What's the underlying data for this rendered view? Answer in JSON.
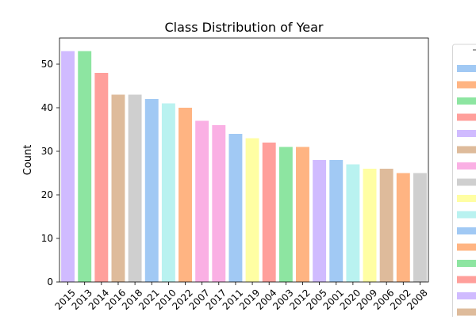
{
  "chart_data": {
    "type": "bar",
    "title": "Class Distribution of Year",
    "xlabel": "",
    "ylabel": "Count",
    "ylim": [
      0,
      56
    ],
    "yticks": [
      0,
      10,
      20,
      30,
      40,
      50
    ],
    "grid": false,
    "legend_position": "right",
    "categories": [
      "2015",
      "2013",
      "2014",
      "2016",
      "2018",
      "2021",
      "2010",
      "2022",
      "2007",
      "2017",
      "2011",
      "2019",
      "2004",
      "2003",
      "2012",
      "2005",
      "2001",
      "2020",
      "2009",
      "2006",
      "2002",
      "2008"
    ],
    "values": [
      53,
      53,
      48,
      43,
      43,
      42,
      41,
      40,
      37,
      36,
      34,
      33,
      32,
      31,
      31,
      28,
      28,
      27,
      26,
      26,
      25,
      25
    ],
    "colors": [
      "#d0bbff",
      "#8de5a1",
      "#ff9f9b",
      "#debb9b",
      "#cfcfcf",
      "#a1c9f4",
      "#b9f2f0",
      "#ffb482",
      "#fab0e4",
      "#fab0e4",
      "#a1c9f4",
      "#fffea3",
      "#ff9f9b",
      "#8de5a1",
      "#ffb482",
      "#d0bbff",
      "#a1c9f4",
      "#b9f2f0",
      "#fffea3",
      "#debb9b",
      "#ffb482",
      "#cfcfcf"
    ],
    "legend_colors": [
      "#a1c9f4",
      "#ffb482",
      "#8de5a1",
      "#ff9f9b",
      "#d0bbff",
      "#debb9b",
      "#fab0e4",
      "#cfcfcf",
      "#fffea3",
      "#b9f2f0",
      "#a1c9f4",
      "#ffb482",
      "#8de5a1",
      "#ff9f9b",
      "#d0bbff",
      "#debb9b"
    ]
  }
}
